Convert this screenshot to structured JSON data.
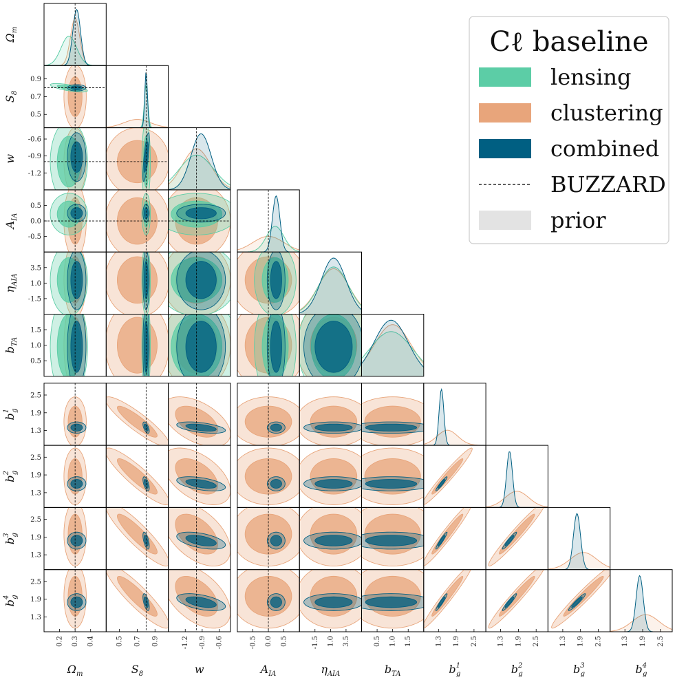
{
  "chart_data": {
    "type": "corner",
    "title": "Cℓ baseline",
    "legend_position": "top-right",
    "legend": [
      {
        "label": "lensing",
        "kind": "fill",
        "color": "#5ccda6"
      },
      {
        "label": "clustering",
        "kind": "fill",
        "color": "#e8a57b"
      },
      {
        "label": "combined",
        "kind": "fill",
        "color": "#005f82"
      },
      {
        "label": "BUZZARD",
        "kind": "dashed",
        "color": "#000000"
      },
      {
        "label": "prior",
        "kind": "fill",
        "color": "#e3e3e3"
      }
    ],
    "colors": {
      "lensing": "#5ccda6",
      "clustering": "#e8a57b",
      "combined": "#005f82",
      "prior": "#dcdcdc"
    },
    "params": [
      {
        "label": "Ω_m",
        "range": [
          0.1,
          0.5
        ],
        "ticks": [
          0.2,
          0.3,
          0.4
        ],
        "tick_labels": [
          "0.2",
          "0.3",
          "0.4"
        ],
        "truth": 0.3
      },
      {
        "label": "S_8",
        "range": [
          0.35,
          1.05
        ],
        "ticks": [
          0.5,
          0.7,
          0.9
        ],
        "tick_labels": [
          "0.5",
          "0.7",
          "0.9"
        ],
        "truth": 0.8
      },
      {
        "label": "w",
        "range": [
          -1.5,
          -0.4
        ],
        "ticks": [
          -1.2,
          -0.9,
          -0.6
        ],
        "tick_labels": [
          "-1.2",
          "-0.9",
          "-0.6"
        ],
        "truth": -1.0
      },
      {
        "label": "A_IA",
        "range": [
          -1.0,
          1.0
        ],
        "ticks": [
          -0.5,
          0.0,
          0.5
        ],
        "tick_labels": [
          "-0.5",
          "0.0",
          "0.5"
        ],
        "truth": 0.0
      },
      {
        "label": "η_AIA",
        "range": [
          -4.0,
          6.0
        ],
        "ticks": [
          -1.5,
          1.0,
          3.5
        ],
        "tick_labels": [
          "-1.5",
          "1.0",
          "3.5"
        ],
        "truth": null
      },
      {
        "label": "b_TA",
        "range": [
          0.0,
          2.0
        ],
        "ticks": [
          0.5,
          1.0,
          1.5
        ],
        "tick_labels": [
          "0.5",
          "1.0",
          "1.5"
        ],
        "truth": null
      },
      {
        "label": "b_g^1",
        "range": [
          0.8,
          2.9
        ],
        "ticks": [
          1.3,
          1.9,
          2.5
        ],
        "tick_labels": [
          "1.3",
          "1.9",
          "2.5"
        ],
        "truth": null
      },
      {
        "label": "b_g^2",
        "range": [
          0.8,
          2.9
        ],
        "ticks": [
          1.3,
          1.9,
          2.5
        ],
        "tick_labels": [
          "1.3",
          "1.9",
          "2.5"
        ],
        "truth": null
      },
      {
        "label": "b_g^3",
        "range": [
          0.8,
          2.9
        ],
        "ticks": [
          1.3,
          1.9,
          2.5
        ],
        "tick_labels": [
          "1.3",
          "1.9",
          "2.5"
        ],
        "truth": null
      },
      {
        "label": "b_g^4",
        "range": [
          0.8,
          2.9
        ],
        "ticks": [
          1.3,
          1.9,
          2.5
        ],
        "tick_labels": [
          "1.3",
          "1.9",
          "2.5"
        ],
        "truth": null
      }
    ],
    "axis_labels_tex": [
      {
        "base": "Ω",
        "sub": "m",
        "sup": ""
      },
      {
        "base": "S",
        "sub": "8",
        "sup": ""
      },
      {
        "base": "w",
        "sub": "",
        "sup": ""
      },
      {
        "base": "A",
        "sub": "IA",
        "sup": ""
      },
      {
        "base": "η",
        "sub": "AIA",
        "sup": ""
      },
      {
        "base": "b",
        "sub": "TA",
        "sup": ""
      },
      {
        "base": "b",
        "sub": "g",
        "sup": "1"
      },
      {
        "base": "b",
        "sub": "g",
        "sup": "2"
      },
      {
        "base": "b",
        "sub": "g",
        "sup": "3"
      },
      {
        "base": "b",
        "sub": "g",
        "sup": "4"
      }
    ],
    "posteriors": {
      "combined": {
        "mean": [
          0.31,
          0.8,
          -0.92,
          0.25,
          1.5,
          0.95,
          1.4,
          1.6,
          1.78,
          1.8
        ],
        "sigma": [
          0.025,
          0.015,
          0.18,
          0.12,
          2.0,
          0.55,
          0.08,
          0.1,
          0.12,
          0.12
        ],
        "corr": {
          "1-2": 0.75,
          "6-1": -0.6,
          "7-1": -0.6,
          "8-1": -0.6,
          "9-1": -0.6,
          "6-2": -0.5,
          "7-2": -0.5,
          "8-2": -0.5,
          "9-2": -0.5,
          "7-6": 0.95,
          "8-6": 0.95,
          "9-6": 0.95,
          "8-7": 0.95,
          "9-7": 0.95,
          "9-8": 0.95
        }
      },
      "lensing": {
        "mean": [
          0.26,
          0.8,
          -1.0,
          0.22,
          1.5,
          0.95
        ],
        "sigma": [
          0.05,
          0.02,
          0.3,
          0.28,
          2.4,
          0.7
        ],
        "corr": {
          "1-0": -0.7
        }
      },
      "clustering": {
        "mean": [
          0.3,
          0.7,
          -1.0,
          0.0,
          1.5,
          1.0,
          1.6,
          1.85,
          2.0,
          2.0
        ],
        "sigma": [
          0.03,
          0.15,
          0.25,
          0.5,
          2.5,
          0.6,
          0.35,
          0.4,
          0.45,
          0.45
        ],
        "corr": {
          "6-1": -0.9,
          "7-1": -0.9,
          "8-1": -0.9,
          "9-1": -0.9,
          "6-2": -0.5,
          "7-2": -0.5,
          "8-2": -0.5,
          "9-2": -0.5,
          "7-6": 0.97,
          "8-6": 0.97,
          "9-6": 0.97,
          "8-7": 0.97,
          "9-7": 0.97,
          "9-8": 0.97
        }
      }
    },
    "clustering_params": [
      0,
      1,
      2,
      6,
      7,
      8,
      9
    ]
  }
}
